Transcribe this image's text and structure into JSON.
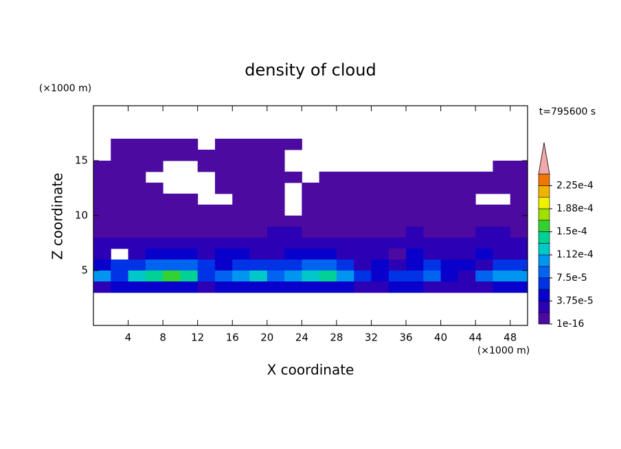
{
  "chart_data": {
    "type": "contour",
    "title": "density of cloud",
    "xlabel": "X coordinate",
    "ylabel": "Z coordinate",
    "x_unit_label": "(×1000 m)",
    "y_unit_label": "(×1000 m)",
    "annotation": "t=795600 s",
    "xlim": [
      0,
      50
    ],
    "ylim": [
      0,
      20
    ],
    "xticks": [
      4,
      8,
      12,
      16,
      20,
      24,
      28,
      32,
      36,
      40,
      44,
      48
    ],
    "yticks": [
      5,
      10,
      15
    ],
    "x": [
      1,
      3,
      5,
      7,
      9,
      11,
      13,
      15,
      17,
      19,
      21,
      23,
      25,
      27,
      29,
      31,
      33,
      35,
      37,
      39,
      41,
      43,
      45,
      47,
      49
    ],
    "y": [
      16.5,
      15.5,
      14.5,
      13.5,
      12.5,
      11.5,
      10.5,
      9.5,
      8.5,
      7.5,
      6.5,
      5.5,
      4.5,
      3.5
    ],
    "z": [
      [
        0,
        1e-05,
        1e-05,
        1e-05,
        1e-05,
        1e-05,
        0,
        1e-05,
        1e-05,
        1e-05,
        1e-05,
        1e-05,
        0,
        0,
        0,
        0,
        0,
        0,
        0,
        0,
        0,
        0,
        0,
        0,
        0
      ],
      [
        0,
        1e-05,
        1e-05,
        1e-05,
        1e-05,
        1e-05,
        1e-05,
        1e-05,
        1e-05,
        1e-05,
        1e-05,
        0,
        0,
        0,
        0,
        0,
        0,
        0,
        0,
        0,
        0,
        0,
        0,
        0,
        0
      ],
      [
        1e-05,
        1e-05,
        1e-05,
        1e-05,
        0,
        0,
        1e-05,
        1e-05,
        1e-05,
        1e-05,
        1e-05,
        0,
        0,
        0,
        0,
        0,
        0,
        0,
        0,
        0,
        0,
        0,
        0,
        1e-05,
        1e-05
      ],
      [
        1e-05,
        1e-05,
        1e-05,
        0,
        0,
        0,
        0,
        1e-05,
        1e-05,
        1e-05,
        1e-05,
        1e-05,
        0,
        1e-05,
        1e-05,
        1e-05,
        1e-05,
        1e-05,
        1e-05,
        1e-05,
        1e-05,
        1e-05,
        1e-05,
        1e-05,
        1e-05
      ],
      [
        1e-05,
        1e-05,
        1e-05,
        1e-05,
        0,
        0,
        0,
        1e-05,
        1e-05,
        1e-05,
        1e-05,
        0,
        1e-05,
        1e-05,
        1e-05,
        1e-05,
        1e-05,
        1e-05,
        1e-05,
        1e-05,
        1e-05,
        1e-05,
        1e-05,
        1e-05,
        1e-05
      ],
      [
        1e-05,
        1e-05,
        1e-05,
        1e-05,
        1e-05,
        1e-05,
        0,
        0,
        1e-05,
        1e-05,
        1e-05,
        0,
        1e-05,
        1e-05,
        1e-05,
        1e-05,
        1e-05,
        1e-05,
        1e-05,
        1e-05,
        1e-05,
        1e-05,
        0,
        0,
        1e-05
      ],
      [
        1e-05,
        1e-05,
        1e-05,
        1e-05,
        1e-05,
        1e-05,
        1e-05,
        1e-05,
        1e-05,
        1e-05,
        1e-05,
        0,
        1e-05,
        1e-05,
        1e-05,
        1e-05,
        1e-05,
        1e-05,
        1e-05,
        1e-05,
        1e-05,
        1e-05,
        1e-05,
        1e-05,
        1e-05
      ],
      [
        1e-05,
        1e-05,
        1e-05,
        1e-05,
        1e-05,
        1e-05,
        1e-05,
        1e-05,
        1e-05,
        1e-05,
        1e-05,
        1e-05,
        1e-05,
        1e-05,
        1e-05,
        1e-05,
        1e-05,
        1e-05,
        1e-05,
        1e-05,
        1e-05,
        1e-05,
        1e-05,
        1e-05,
        1e-05
      ],
      [
        1e-05,
        1e-05,
        1e-05,
        1e-05,
        1e-05,
        1e-05,
        1e-05,
        1e-05,
        1e-05,
        1e-05,
        2.8e-05,
        2.8e-05,
        1e-05,
        1e-05,
        1e-05,
        1e-05,
        1e-05,
        1e-05,
        2.8e-05,
        1e-05,
        1e-05,
        1e-05,
        2.8e-05,
        2.8e-05,
        1e-05
      ],
      [
        2.8e-05,
        2.8e-05,
        2.8e-05,
        2.8e-05,
        2.8e-05,
        2.8e-05,
        2.8e-05,
        2.8e-05,
        2.8e-05,
        2.8e-05,
        2.8e-05,
        2.8e-05,
        2.8e-05,
        2.8e-05,
        2.8e-05,
        2.8e-05,
        2.8e-05,
        2.8e-05,
        2.8e-05,
        2.8e-05,
        2.8e-05,
        2.8e-05,
        2.8e-05,
        2.8e-05,
        2.8e-05
      ],
      [
        2.8e-05,
        0,
        2.8e-05,
        4.7e-05,
        4.7e-05,
        4.7e-05,
        2.8e-05,
        4.7e-05,
        4.7e-05,
        2.8e-05,
        2.8e-05,
        4.7e-05,
        4.7e-05,
        4.7e-05,
        2.8e-05,
        2.8e-05,
        2.8e-05,
        1e-05,
        4.7e-05,
        2.8e-05,
        2.8e-05,
        2.8e-05,
        4.7e-05,
        2.8e-05,
        2.8e-05
      ],
      [
        4.7e-05,
        6.5e-05,
        6.5e-05,
        8.4e-05,
        8.4e-05,
        8.4e-05,
        6.5e-05,
        4.7e-05,
        6.5e-05,
        6.5e-05,
        6.5e-05,
        6.5e-05,
        8.4e-05,
        8.4e-05,
        6.5e-05,
        2.8e-05,
        4.7e-05,
        2.8e-05,
        4.7e-05,
        6.5e-05,
        4.7e-05,
        4.7e-05,
        2.8e-05,
        6.5e-05,
        6.5e-05
      ],
      [
        0.000103,
        6.5e-05,
        0.000122,
        0.00014,
        0.00016,
        0.00014,
        6.5e-05,
        8.4e-05,
        0.000103,
        0.000122,
        8.4e-05,
        0.000103,
        0.000122,
        0.00014,
        0.000103,
        6.5e-05,
        4.7e-05,
        6.5e-05,
        6.5e-05,
        8.4e-05,
        4.7e-05,
        2.8e-05,
        8.4e-05,
        0.000103,
        0.000103
      ],
      [
        2.8e-05,
        4.7e-05,
        4.7e-05,
        4.7e-05,
        4.7e-05,
        4.7e-05,
        2.8e-05,
        4.7e-05,
        4.7e-05,
        4.7e-05,
        4.7e-05,
        4.7e-05,
        4.7e-05,
        4.7e-05,
        4.7e-05,
        2.8e-05,
        2.8e-05,
        4.7e-05,
        4.7e-05,
        2.8e-05,
        2.8e-05,
        2.8e-05,
        2.8e-05,
        4.7e-05,
        4.7e-05
      ]
    ],
    "levels": [
      1e-16,
      1.875e-05,
      3.75e-05,
      5.625e-05,
      7.5e-05,
      9.375e-05,
      0.0001125,
      0.00013125,
      0.00015,
      0.00016875,
      0.0001875,
      0.00020625,
      0.000225,
      0.00024375
    ],
    "colors": [
      "#4c0aa0",
      "#2c00b4",
      "#0a00cc",
      "#0032e6",
      "#0064f0",
      "#0096f0",
      "#00c8c8",
      "#00d296",
      "#32d232",
      "#a0e000",
      "#f0f000",
      "#f0b400",
      "#f07800"
    ],
    "extend_color": "#f0a8a8",
    "colorbar_ticks": [
      {
        "value": 1e-16,
        "label": "1e-16"
      },
      {
        "value": 3.75e-05,
        "label": "3.75e-5"
      },
      {
        "value": 7.5e-05,
        "label": "7.5e-5"
      },
      {
        "value": 0.0001125,
        "label": "1.12e-4"
      },
      {
        "value": 0.00015,
        "label": "1.5e-4"
      },
      {
        "value": 0.0001875,
        "label": "1.88e-4"
      },
      {
        "value": 0.000225,
        "label": "2.25e-4"
      }
    ]
  }
}
